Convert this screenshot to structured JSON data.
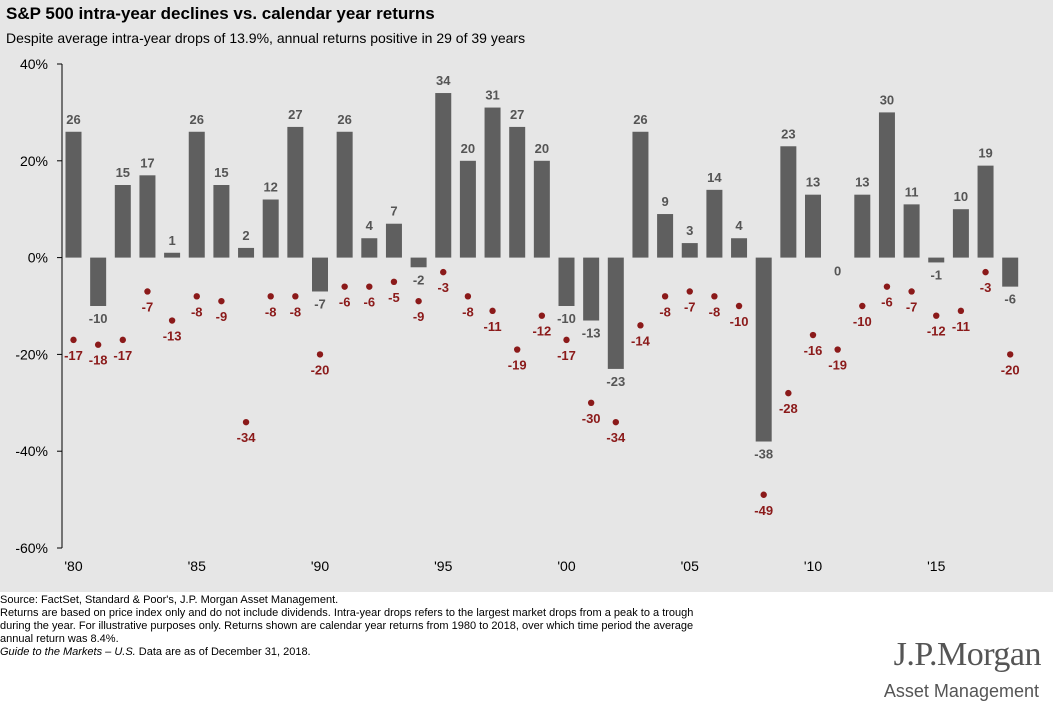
{
  "title": "S&P 500 intra-year declines vs. calendar year returns",
  "subtitle": "Despite average intra-year drops of 13.9%, annual returns positive in 29 of 39 years",
  "chart_data": {
    "type": "bar",
    "x": [
      1980,
      1981,
      1982,
      1983,
      1984,
      1985,
      1986,
      1987,
      1988,
      1989,
      1990,
      1991,
      1992,
      1993,
      1994,
      1995,
      1996,
      1997,
      1998,
      1999,
      2000,
      2001,
      2002,
      2003,
      2004,
      2005,
      2006,
      2007,
      2008,
      2009,
      2010,
      2011,
      2012,
      2013,
      2014,
      2015,
      2016,
      2017,
      2018
    ],
    "x_tick_labels": [
      "'80",
      "'85",
      "'90",
      "'95",
      "'00",
      "'05",
      "'10",
      "'15"
    ],
    "x_tick_values": [
      1980,
      1985,
      1990,
      1995,
      2000,
      2005,
      2010,
      2015
    ],
    "y_tick_labels": [
      "40%",
      "20%",
      "0%",
      "-20%",
      "-40%",
      "-60%"
    ],
    "y_tick_values": [
      40,
      20,
      0,
      -20,
      -40,
      -60
    ],
    "ylim": [
      -60,
      40
    ],
    "grid": false,
    "colors": {
      "bars": "#5f5f5f",
      "dots": "#8b1a1a",
      "bar_labels": "#555555",
      "dot_labels": "#8b1a1a"
    },
    "series": [
      {
        "type": "bar",
        "values": [
          26,
          -10,
          15,
          17,
          1,
          26,
          15,
          2,
          12,
          27,
          -7,
          26,
          4,
          7,
          -2,
          34,
          20,
          31,
          27,
          20,
          -10,
          -13,
          -23,
          26,
          9,
          3,
          14,
          4,
          -38,
          23,
          13,
          0,
          13,
          30,
          11,
          -1,
          10,
          19,
          -6
        ]
      },
      {
        "type": "scatter",
        "values": [
          -17,
          -18,
          -17,
          -7,
          -13,
          -8,
          -9,
          -34,
          -8,
          -8,
          -20,
          -6,
          -6,
          -5,
          -9,
          -3,
          -8,
          -11,
          -19,
          -12,
          -17,
          -30,
          -34,
          -14,
          -8,
          -7,
          -8,
          -10,
          -49,
          -28,
          -16,
          -19,
          -10,
          -6,
          -7,
          -12,
          -11,
          -3,
          -20
        ]
      }
    ]
  },
  "notes": {
    "source": "Source: FactSet, Standard & Poor's, J.P. Morgan Asset Management.",
    "line2": "Returns are based on price index only and do not include dividends. Intra-year drops refers to the largest market drops from a peak to a trough",
    "line3": "during the year. For illustrative purposes only. Returns shown are calendar year returns from 1980 to 2018, over which time period the average",
    "line4": "annual return was 8.4%.",
    "guide_italic": "Guide to the Markets – U.S.",
    "guide_rest": " Data are as of December 31, 2018."
  },
  "brand": {
    "name": "J.P.Morgan",
    "sub": "Asset Management"
  }
}
